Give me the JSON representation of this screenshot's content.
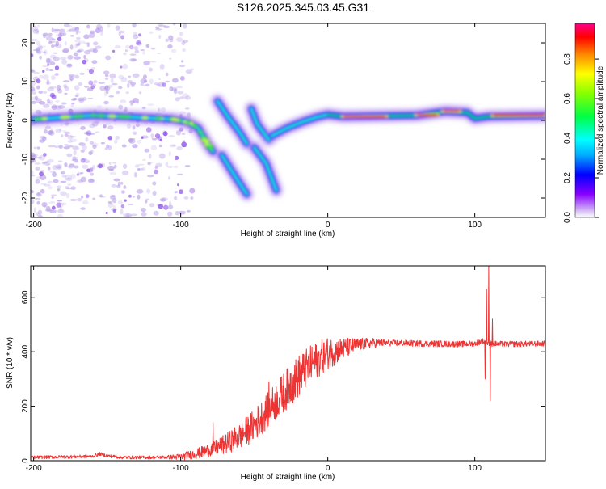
{
  "title": "S126.2025.345.03.45.G31",
  "colors": {
    "snr_line": "#ee3333",
    "spectrum_ridge_hot": "#e8202a",
    "spectrum_ridge_mid": "#00c060",
    "spectrum_halo": "#7a00ee",
    "noise": "#b59be8"
  },
  "chart_data": [
    {
      "type": "heatmap",
      "name": "spectrogram",
      "xlabel": "Height of straight line (km)",
      "ylabel": "Frequency (Hz)",
      "xlim": [
        -202,
        148
      ],
      "ylim": [
        -25,
        25
      ],
      "xticks": [
        -200,
        -100,
        0,
        100
      ],
      "xtick_labels": [
        "-200",
        "-100",
        "0",
        "100"
      ],
      "yticks": [
        -20,
        -10,
        0,
        10,
        20
      ],
      "ytick_labels": [
        "-20",
        "-10",
        "0",
        "10",
        "20"
      ],
      "ridge": [
        {
          "x": -200,
          "f": 0.3
        },
        {
          "x": -180,
          "f": 0.8
        },
        {
          "x": -160,
          "f": 1.3
        },
        {
          "x": -140,
          "f": 1.0
        },
        {
          "x": -120,
          "f": 0.6
        },
        {
          "x": -105,
          "f": 0.3
        },
        {
          "x": -95,
          "f": -0.5
        },
        {
          "x": -88,
          "f": -2
        },
        {
          "x": -82,
          "f": -6
        },
        {
          "x": -78,
          "f": -8
        }
      ],
      "branches": [
        [
          {
            "x": -75,
            "f": 5
          },
          {
            "x": -68,
            "f": 1
          },
          {
            "x": -60,
            "f": -3
          },
          {
            "x": -55,
            "f": -6
          }
        ],
        [
          {
            "x": -52,
            "f": 3
          },
          {
            "x": -48,
            "f": -1
          },
          {
            "x": -40,
            "f": -5
          }
        ],
        [
          {
            "x": -72,
            "f": -9
          },
          {
            "x": -62,
            "f": -15
          },
          {
            "x": -55,
            "f": -19
          }
        ],
        [
          {
            "x": -50,
            "f": -7
          },
          {
            "x": -42,
            "f": -11
          },
          {
            "x": -35,
            "f": -18
          }
        ],
        [
          {
            "x": -38,
            "f": -4
          },
          {
            "x": -28,
            "f": -2
          },
          {
            "x": -18,
            "f": -0.5
          },
          {
            "x": -8,
            "f": 0.8
          },
          {
            "x": 0,
            "f": 1.5
          },
          {
            "x": 10,
            "f": 1
          },
          {
            "x": 60,
            "f": 1.3
          },
          {
            "x": 80,
            "f": 2.3
          },
          {
            "x": 95,
            "f": 2
          },
          {
            "x": 100,
            "f": 0.5
          },
          {
            "x": 110,
            "f": 1
          },
          {
            "x": 148,
            "f": 1.2
          }
        ]
      ],
      "hot_segments": [
        {
          "x0": 10,
          "x1": 40,
          "f": 1.0
        },
        {
          "x0": 60,
          "x1": 75,
          "f": 1.4
        },
        {
          "x0": 78,
          "x1": 90,
          "f": 2.4
        },
        {
          "x0": 112,
          "x1": 148,
          "f": 1.3
        }
      ],
      "colorbar": {
        "label": "Normalized spectral amplitude",
        "ticks": [
          0.0,
          0.2,
          0.4,
          0.6,
          0.8
        ],
        "tick_labels": [
          "0.0",
          "0.2",
          "0.4",
          "0.6",
          "0.8"
        ],
        "range": [
          0,
          0.98
        ]
      }
    },
    {
      "type": "line",
      "name": "snr",
      "xlabel": "Height of straight line (km)",
      "ylabel": "SNR (10 * v/v)",
      "xlim": [
        -202,
        148
      ],
      "ylim": [
        0,
        715
      ],
      "xticks": [
        -200,
        -100,
        0,
        100
      ],
      "xtick_labels": [
        "-200",
        "-100",
        "0",
        "100"
      ],
      "yticks": [
        0,
        200,
        400,
        600
      ],
      "ytick_labels": [
        "0",
        "200",
        "400",
        "600"
      ],
      "series": [
        {
          "name": "SNR",
          "points": [
            [
              -202,
              12
            ],
            [
              -180,
              14
            ],
            [
              -160,
              16
            ],
            [
              -155,
              25
            ],
            [
              -150,
              18
            ],
            [
              -140,
              12
            ],
            [
              -120,
              12
            ],
            [
              -100,
              14
            ],
            [
              -90,
              25
            ],
            [
              -80,
              40
            ],
            [
              -70,
              60
            ],
            [
              -60,
              90
            ],
            [
              -50,
              130
            ],
            [
              -40,
              190
            ],
            [
              -30,
              250
            ],
            [
              -20,
              310
            ],
            [
              -10,
              360
            ],
            [
              0,
              395
            ],
            [
              10,
              410
            ],
            [
              20,
              425
            ],
            [
              30,
              432
            ],
            [
              50,
              432
            ],
            [
              70,
              430
            ],
            [
              90,
              428
            ],
            [
              100,
              430
            ],
            [
              105,
              440
            ],
            [
              110,
              430
            ],
            [
              120,
              428
            ],
            [
              148,
              430
            ]
          ],
          "noise_amplitude": [
            [
              -202,
              6
            ],
            [
              -110,
              6
            ],
            [
              -80,
              25
            ],
            [
              -50,
              60
            ],
            [
              -20,
              80
            ],
            [
              0,
              60
            ],
            [
              20,
              25
            ],
            [
              40,
              12
            ],
            [
              148,
              10
            ]
          ],
          "spikes": [
            {
              "x": -78,
              "y": 140
            },
            {
              "x": -40,
              "y": 290
            },
            {
              "x": -25,
              "y": 320
            },
            {
              "x": -15,
              "y": 345
            },
            {
              "x": 3,
              "y": 410
            },
            {
              "x": 108,
              "y": 630
            },
            {
              "x": 109.5,
              "y": 715
            },
            {
              "x": 110.5,
              "y": 220
            },
            {
              "x": 107,
              "y": 300
            },
            {
              "x": 112,
              "y": 520
            }
          ]
        }
      ]
    }
  ]
}
